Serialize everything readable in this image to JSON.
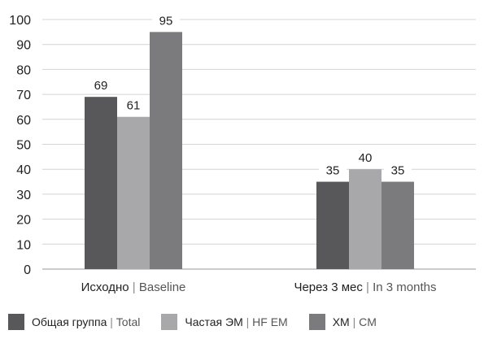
{
  "chart_data": {
    "type": "bar",
    "categories": [
      "Исходно | Baseline",
      "Через 3 мес | In 3 months"
    ],
    "series": [
      {
        "name": "Общая группа | Total",
        "values": [
          69,
          35
        ],
        "color": "#58585a"
      },
      {
        "name": "Частая ЭМ | HF EM",
        "values": [
          61,
          40
        ],
        "color": "#a8a8aa"
      },
      {
        "name": "ХМ | CM",
        "values": [
          95,
          35
        ],
        "color": "#7b7b7d"
      }
    ],
    "y_ticks": [
      0,
      10,
      20,
      30,
      40,
      50,
      60,
      70,
      80,
      90,
      100
    ],
    "ylim": [
      0,
      100
    ],
    "grid": true,
    "legend": "bottom",
    "data_labels": true,
    "title": "",
    "xlabel": "",
    "ylabel": ""
  }
}
